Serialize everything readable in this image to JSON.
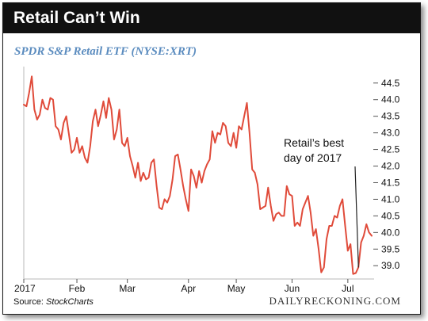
{
  "header": {
    "title": "Retail Can’t Win"
  },
  "source": {
    "label": "Source:",
    "name": "StockCharts"
  },
  "brand": {
    "text": "DAILYRECKONING.COM"
  },
  "colors": {
    "line": "#e04b3a",
    "title": "#5b8cbf",
    "header": "#111111",
    "axis": "#b9b9b9"
  },
  "chart_data": {
    "type": "line",
    "title": "SPDR S&P Retail ETF (NYSE:XRT)",
    "xlabel": "",
    "ylabel": "",
    "y_axis_position": "right",
    "grid": false,
    "ylim": [
      38.6,
      44.9
    ],
    "yticks": [
      39.0,
      39.5,
      40.0,
      40.5,
      41.0,
      41.5,
      42.0,
      42.5,
      43.0,
      43.5,
      44.0,
      44.5
    ],
    "x_ticks": [
      {
        "label": "2017",
        "index": 0
      },
      {
        "label": "Feb",
        "index": 20
      },
      {
        "label": "Mar",
        "index": 39
      },
      {
        "label": "Apr",
        "index": 62
      },
      {
        "label": "May",
        "index": 80
      },
      {
        "label": "Jun",
        "index": 101
      },
      {
        "label": "Jul",
        "index": 122
      }
    ],
    "series": [
      {
        "values": [
          43.85,
          43.8,
          44.2,
          44.7,
          43.7,
          43.4,
          43.55,
          44.0,
          43.75,
          43.7,
          44.05,
          44.0,
          43.2,
          43.1,
          42.8,
          43.3,
          43.5,
          42.95,
          42.4,
          42.5,
          42.85,
          42.4,
          42.6,
          42.25,
          42.1,
          42.6,
          43.35,
          43.7,
          43.2,
          43.55,
          43.95,
          43.45,
          44.05,
          43.7,
          42.8,
          43.1,
          43.7,
          42.7,
          42.6,
          42.85,
          42.3,
          42.0,
          41.65,
          42.1,
          41.55,
          41.8,
          41.6,
          41.65,
          42.1,
          42.2,
          41.4,
          40.75,
          40.7,
          41.0,
          40.9,
          41.1,
          41.6,
          42.3,
          42.35,
          41.9,
          41.4,
          41.0,
          40.65,
          41.9,
          41.7,
          41.35,
          41.85,
          41.5,
          41.85,
          42.05,
          42.2,
          43.05,
          42.7,
          43.0,
          42.95,
          43.3,
          43.2,
          42.7,
          42.6,
          43.0,
          42.55,
          43.2,
          43.1,
          43.5,
          43.9,
          43.0,
          41.9,
          41.8,
          41.45,
          40.7,
          40.75,
          40.8,
          41.35,
          40.8,
          40.35,
          40.55,
          40.6,
          40.5,
          40.5,
          41.4,
          41.15,
          41.1,
          40.2,
          40.3,
          40.2,
          40.7,
          40.9,
          41.1,
          40.6,
          39.9,
          40.1,
          39.5,
          38.8,
          38.95,
          39.8,
          40.2,
          40.2,
          40.5,
          40.45,
          40.8,
          41.0,
          40.2,
          39.45,
          39.65,
          38.75,
          38.78,
          38.95,
          39.7,
          39.9,
          40.25,
          40.0,
          39.9
        ],
        "color": "#e04b3a"
      }
    ],
    "annotation": {
      "text_line1": "Retail’s best",
      "text_line2": "day of 2017",
      "target_index": 126
    }
  }
}
